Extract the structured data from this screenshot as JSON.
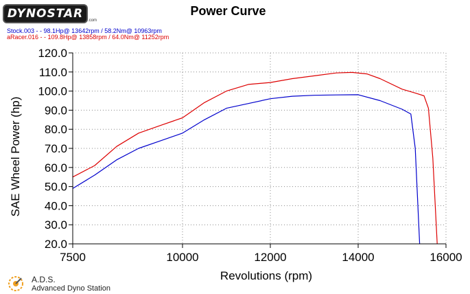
{
  "header": {
    "logo_text": "DYNOSTAR",
    "logo_sub": ".com",
    "title": "Power Curve"
  },
  "legend": [
    {
      "text": "Stock.003 - - 98.1Hp@ 13642rpm / 58.2Nm@ 10963rpm",
      "color": "#0000cc"
    },
    {
      "text": "aRacer.016 - - 109.8Hp@ 13858rpm / 64.0Nm@ 11252rpm",
      "color": "#dd0000"
    }
  ],
  "footer": {
    "brand": "A.D.S.",
    "description": "Advanced Dyno Station"
  },
  "chart_data": {
    "type": "line",
    "title": "Power Curve",
    "xlabel": "Revolutions (rpm)",
    "ylabel": "SAE Wheel Power (hp)",
    "xlim": [
      7500,
      16000
    ],
    "ylim": [
      20,
      120
    ],
    "x_ticks": [
      "7500",
      "10000",
      "12000",
      "14000",
      "16000"
    ],
    "x_tick_values": [
      7500,
      10000,
      12000,
      14000,
      16000
    ],
    "y_ticks": [
      "20.0",
      "30.0",
      "40.0",
      "50.0",
      "60.0",
      "70.0",
      "80.0",
      "90.0",
      "100.0",
      "110.0",
      "120.0"
    ],
    "y_tick_values": [
      20,
      30,
      40,
      50,
      60,
      70,
      80,
      90,
      100,
      110,
      120
    ],
    "series": [
      {
        "name": "Stock.003",
        "color": "#0000cc",
        "x": [
          7500,
          8000,
          8500,
          9000,
          9500,
          10000,
          10500,
          11000,
          11500,
          12000,
          12500,
          13000,
          13500,
          14000,
          14500,
          15000,
          15200,
          15300,
          15400
        ],
        "y": [
          49,
          56,
          64,
          70,
          74,
          78,
          85,
          91,
          93.5,
          96,
          97.3,
          97.8,
          98.0,
          98.1,
          95,
          90.5,
          88,
          70,
          20
        ]
      },
      {
        "name": "aRacer.016",
        "color": "#dd0000",
        "x": [
          7500,
          8000,
          8500,
          9000,
          9500,
          10000,
          10500,
          11000,
          11500,
          12000,
          12500,
          13000,
          13500,
          13858,
          14200,
          14500,
          15000,
          15300,
          15500,
          15600,
          15700,
          15800
        ],
        "y": [
          55,
          61,
          71,
          78,
          82,
          86,
          94,
          100,
          103.5,
          104.5,
          106.5,
          108,
          109.5,
          109.8,
          109,
          106.5,
          101,
          99,
          97.5,
          91,
          65,
          20
        ]
      }
    ]
  }
}
